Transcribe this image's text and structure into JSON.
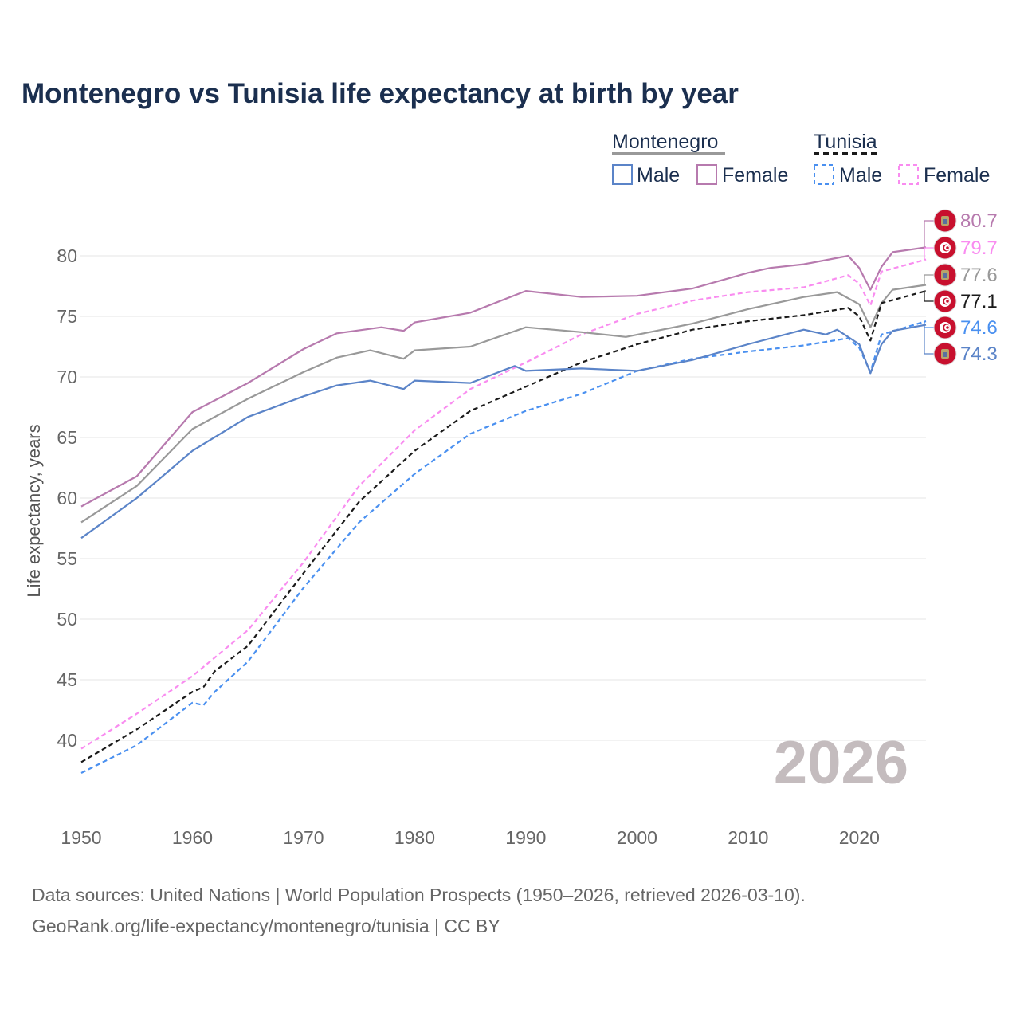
{
  "title": "Montenegro vs Tunisia life expectancy at birth by year",
  "legend": {
    "groups": [
      {
        "name": "Montenegro",
        "male": "Male",
        "female": "Female"
      },
      {
        "name": "Tunisia",
        "male": "Male",
        "female": "Female"
      }
    ]
  },
  "current_year": "2026",
  "source_line1": "Data sources: United Nations | World Population Prospects (1950–2026, retrieved 2026-03-10).",
  "source_line2": "GeoRank.org/life-expectancy/montenegro/tunisia | CC BY",
  "chart_data": {
    "type": "line",
    "title": "Montenegro vs Tunisia life expectancy at birth by year",
    "xlabel": "",
    "ylabel": "Life expectancy, years",
    "xlim": [
      1950,
      2026
    ],
    "ylim": [
      35,
      83
    ],
    "xticks": [
      "1950",
      "1960",
      "1970",
      "1980",
      "1990",
      "2000",
      "2010",
      "2020"
    ],
    "yticks": [
      "40",
      "45",
      "50",
      "55",
      "60",
      "65",
      "70",
      "75",
      "80"
    ],
    "grid": true,
    "legend_position": "top-right",
    "series": [
      {
        "name": "Montenegro Female",
        "color": "#b77aae",
        "dashed": false,
        "end_label": "80.7",
        "x": [
          1950,
          1955,
          1960,
          1965,
          1970,
          1973,
          1977,
          1979,
          1980,
          1985,
          1990,
          1995,
          2000,
          2005,
          2010,
          2012,
          2015,
          2019,
          2020,
          2021,
          2022,
          2023,
          2026
        ],
        "y": [
          59.3,
          61.8,
          67.1,
          69.5,
          72.3,
          73.6,
          74.1,
          73.8,
          74.5,
          75.3,
          77.1,
          76.6,
          76.7,
          77.3,
          78.6,
          79.0,
          79.3,
          80.0,
          79.0,
          77.2,
          79.1,
          80.3,
          80.7
        ]
      },
      {
        "name": "Tunisia Female",
        "color": "#f98cf0",
        "dashed": true,
        "end_label": "79.7",
        "x": [
          1950,
          1955,
          1960,
          1965,
          1970,
          1975,
          1980,
          1985,
          1990,
          1995,
          2000,
          2005,
          2010,
          2015,
          2019,
          2020,
          2021,
          2022,
          2026
        ],
        "y": [
          39.3,
          42.2,
          45.3,
          49.1,
          54.7,
          61.0,
          65.6,
          69.0,
          71.2,
          73.5,
          75.2,
          76.3,
          77.0,
          77.4,
          78.4,
          77.7,
          75.9,
          78.7,
          79.7
        ]
      },
      {
        "name": "Montenegro",
        "color": "#999999",
        "dashed": false,
        "end_label": "77.6",
        "x": [
          1950,
          1955,
          1960,
          1965,
          1970,
          1973,
          1976,
          1979,
          1980,
          1985,
          1990,
          1995,
          1999,
          2005,
          2010,
          2015,
          2018,
          2020,
          2021,
          2022,
          2023,
          2026
        ],
        "y": [
          58.0,
          61.0,
          65.7,
          68.2,
          70.4,
          71.6,
          72.2,
          71.5,
          72.2,
          72.5,
          74.1,
          73.7,
          73.3,
          74.4,
          75.6,
          76.6,
          77.0,
          76.0,
          74.1,
          76.1,
          77.2,
          77.6
        ]
      },
      {
        "name": "Tunisia",
        "color": "#1a1a1a",
        "dashed": true,
        "end_label": "77.1",
        "x": [
          1950,
          1955,
          1960,
          1961,
          1962,
          1965,
          1970,
          1975,
          1980,
          1985,
          1990,
          1995,
          2000,
          2005,
          2010,
          2015,
          2019,
          2020,
          2021,
          2022,
          2026
        ],
        "y": [
          38.2,
          40.9,
          44.0,
          44.4,
          45.7,
          47.8,
          53.8,
          59.7,
          63.9,
          67.2,
          69.2,
          71.2,
          72.7,
          73.9,
          74.6,
          75.1,
          75.7,
          75.0,
          73.0,
          76.1,
          77.1
        ]
      },
      {
        "name": "Tunisia Male",
        "color": "#4a90f0",
        "dashed": true,
        "end_label": "74.6",
        "x": [
          1950,
          1955,
          1960,
          1961,
          1962,
          1965,
          1970,
          1975,
          1980,
          1985,
          1990,
          1995,
          2000,
          2005,
          2010,
          2015,
          2019,
          2020,
          2021,
          2022,
          2026
        ],
        "y": [
          37.3,
          39.6,
          43.1,
          42.9,
          44.0,
          46.5,
          52.6,
          58.0,
          62.0,
          65.3,
          67.2,
          68.6,
          70.5,
          71.5,
          72.1,
          72.6,
          73.2,
          72.4,
          70.4,
          73.5,
          74.6
        ]
      },
      {
        "name": "Montenegro Male",
        "color": "#5b84c8",
        "dashed": false,
        "end_label": "74.3",
        "x": [
          1950,
          1955,
          1960,
          1965,
          1970,
          1973,
          1976,
          1979,
          1980,
          1985,
          1989,
          1990,
          1995,
          2000,
          2005,
          2010,
          2015,
          2017,
          2018,
          2020,
          2021,
          2022,
          2023,
          2026
        ],
        "y": [
          56.7,
          60.0,
          63.9,
          66.7,
          68.4,
          69.3,
          69.7,
          69.0,
          69.7,
          69.5,
          70.9,
          70.5,
          70.7,
          70.5,
          71.4,
          72.7,
          73.9,
          73.5,
          73.9,
          72.7,
          70.3,
          72.7,
          73.8,
          74.3
        ]
      }
    ]
  }
}
